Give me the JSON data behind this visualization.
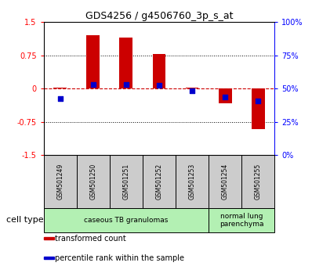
{
  "title": "GDS4256 / g4506760_3p_s_at",
  "samples": [
    "GSM501249",
    "GSM501250",
    "GSM501251",
    "GSM501252",
    "GSM501253",
    "GSM501254",
    "GSM501255"
  ],
  "transformed_count": [
    0.02,
    1.2,
    1.15,
    0.78,
    0.02,
    -0.33,
    -0.92
  ],
  "percentile_rank_mapped": [
    -0.22,
    0.1,
    0.1,
    0.08,
    -0.04,
    -0.19,
    -0.28
  ],
  "bar_color": "#cc0000",
  "dot_color": "#0000cc",
  "ylim": [
    -1.5,
    1.5
  ],
  "yticks_left": [
    -1.5,
    -0.75,
    0,
    0.75,
    1.5
  ],
  "ytick_labels_left": [
    "-1.5",
    "-0.75",
    "0",
    "0.75",
    "1.5"
  ],
  "ytick_labels_right": [
    "0%",
    "25%",
    "50%",
    "75%",
    "100%"
  ],
  "groups": [
    {
      "label": "caseous TB granulomas",
      "xstart": 0,
      "xend": 4,
      "color": "#b3f0b3"
    },
    {
      "label": "normal lung\nparenchyma",
      "xstart": 5,
      "xend": 6,
      "color": "#b3f0b3"
    }
  ],
  "sample_box_color": "#cccccc",
  "legend_items": [
    {
      "color": "#cc0000",
      "label": "transformed count"
    },
    {
      "color": "#0000cc",
      "label": "percentile rank within the sample"
    }
  ],
  "zero_line_color": "#cc0000",
  "bar_width": 0.4,
  "dot_size": 25,
  "title_fontsize": 9,
  "tick_fontsize": 7,
  "sample_fontsize": 5.5,
  "group_fontsize": 6.5,
  "legend_fontsize": 7,
  "celllabel_fontsize": 8
}
